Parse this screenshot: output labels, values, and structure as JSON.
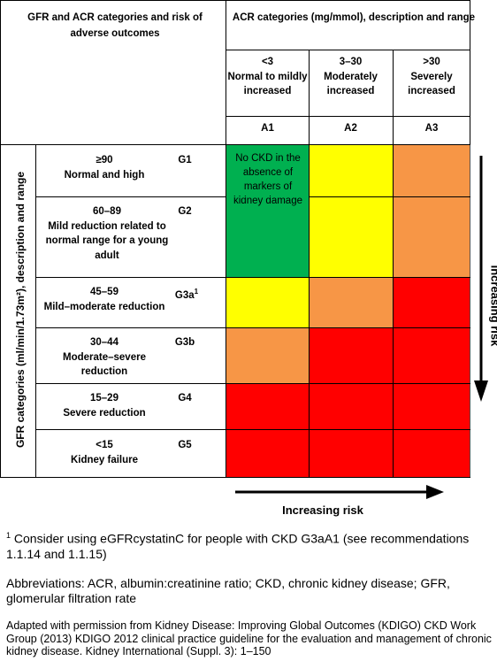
{
  "header": {
    "left_title": "GFR and ACR categories and risk of adverse outcomes",
    "acr_title": "ACR categories (mg/mmol), description and range"
  },
  "acr_categories": [
    {
      "range": "<3",
      "description": "Normal to mildly increased",
      "code": "A1"
    },
    {
      "range": "3–30",
      "description": "Moderately increased",
      "code": "A2"
    },
    {
      "range": ">30",
      "description": "Severely increased",
      "code": "A3"
    }
  ],
  "gfr_axis_label": "GFR categories (ml/min/1.73m²), description and range",
  "gfr_categories": [
    {
      "range": "≥90",
      "description": "Normal and high",
      "code": "G1",
      "sup": ""
    },
    {
      "range": "60–89",
      "description": "Mild reduction related to normal range for a young adult",
      "code": "G2",
      "sup": ""
    },
    {
      "range": "45–59",
      "description": "Mild–moderate reduction",
      "code": "G3a",
      "sup": "1"
    },
    {
      "range": "30–44",
      "description": "Moderate–severe reduction",
      "code": "G3b",
      "sup": ""
    },
    {
      "range": "15–29",
      "description": "Severe reduction",
      "code": "G4",
      "sup": ""
    },
    {
      "range": "<15",
      "description": "Kidney failure",
      "code": "G5",
      "sup": ""
    }
  ],
  "risk_colors": {
    "green": "#00b050",
    "yellow": "#ffff00",
    "orange": "#f79646",
    "red": "#ff0000"
  },
  "risk_grid": [
    [
      "green",
      "yellow",
      "orange"
    ],
    [
      "green",
      "yellow",
      "orange"
    ],
    [
      "yellow",
      "orange",
      "red"
    ],
    [
      "orange",
      "red",
      "red"
    ],
    [
      "red",
      "red",
      "red"
    ],
    [
      "red",
      "red",
      "red"
    ]
  ],
  "no_ckd_note": "No CKD in the absence of markers of kidney damage",
  "vertical_risk_label": "Increasing risk",
  "horizontal_risk_label": "Increasing risk",
  "footnotes": {
    "note1_marker": "1",
    "note1": " Consider using eGFRcystatinC for people with CKD G3aA1 (see recommendations 1.1.14 and 1.1.15)",
    "abbreviations": "Abbreviations: ACR, albumin:creatinine ratio; CKD, chronic kidney disease; GFR, glomerular filtration rate",
    "source": "Adapted with permission from Kidney Disease: Improving Global Outcomes (KDIGO) CKD Work Group (2013) KDIGO 2012 clinical practice guideline for the evaluation and management of chronic kidney disease. Kidney International (Suppl. 3): 1–150"
  }
}
